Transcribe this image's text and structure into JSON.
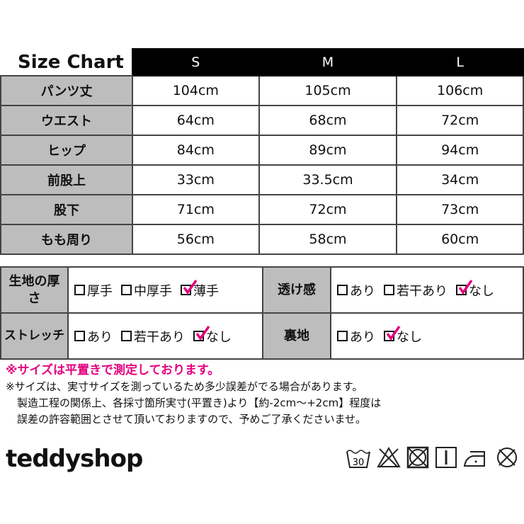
{
  "size_chart": {
    "title": "Size Chart",
    "sizes": [
      "S",
      "M",
      "L"
    ],
    "rows": [
      {
        "label": "パンツ丈",
        "values": [
          "104cm",
          "105cm",
          "106cm"
        ]
      },
      {
        "label": "ウエスト",
        "values": [
          "64cm",
          "68cm",
          "72cm"
        ]
      },
      {
        "label": "ヒップ",
        "values": [
          "84cm",
          "89cm",
          "94cm"
        ]
      },
      {
        "label": "前股上",
        "values": [
          "33cm",
          "33.5cm",
          "34cm"
        ]
      },
      {
        "label": "股下",
        "values": [
          "71cm",
          "72cm",
          "73cm"
        ]
      },
      {
        "label": "もも周り",
        "values": [
          "56cm",
          "58cm",
          "60cm"
        ]
      }
    ]
  },
  "attributes": [
    {
      "label": "生地の厚さ",
      "options": [
        {
          "text": "厚手",
          "checked": false
        },
        {
          "text": "中厚手",
          "checked": false
        },
        {
          "text": "薄手",
          "checked": true
        }
      ]
    },
    {
      "label": "透け感",
      "options": [
        {
          "text": "あり",
          "checked": false
        },
        {
          "text": "若干あり",
          "checked": false
        },
        {
          "text": "なし",
          "checked": true
        }
      ]
    },
    {
      "label": "ストレッチ",
      "options": [
        {
          "text": "あり",
          "checked": false
        },
        {
          "text": "若干あり",
          "checked": false
        },
        {
          "text": "なし",
          "checked": true
        }
      ]
    },
    {
      "label": "裏地",
      "options": [
        {
          "text": "あり",
          "checked": false
        },
        {
          "text": "なし",
          "checked": true
        }
      ]
    }
  ],
  "notes": [
    "※サイズは平置きで測定しております。",
    "※サイズは、実寸サイズを測っているため多少誤差がでる場合があります。",
    "製造工程の関係上、各採寸箇所実寸(平置き)より【約-2cm～+2cm】程度は",
    "誤差の許容範囲とさせて頂いておりますので、予めご了承くださいませ。"
  ],
  "brand": "teddyshop",
  "care_icons": [
    "wash-30-icon",
    "no-bleach-icon",
    "no-tumble-dry-icon",
    "line-dry-icon",
    "iron-low-icon",
    "no-dry-clean-icon"
  ],
  "care_label_text": "30",
  "colors": {
    "accent": "#e4007f",
    "header": "#000000",
    "label_bg": "#bdbdbd"
  }
}
